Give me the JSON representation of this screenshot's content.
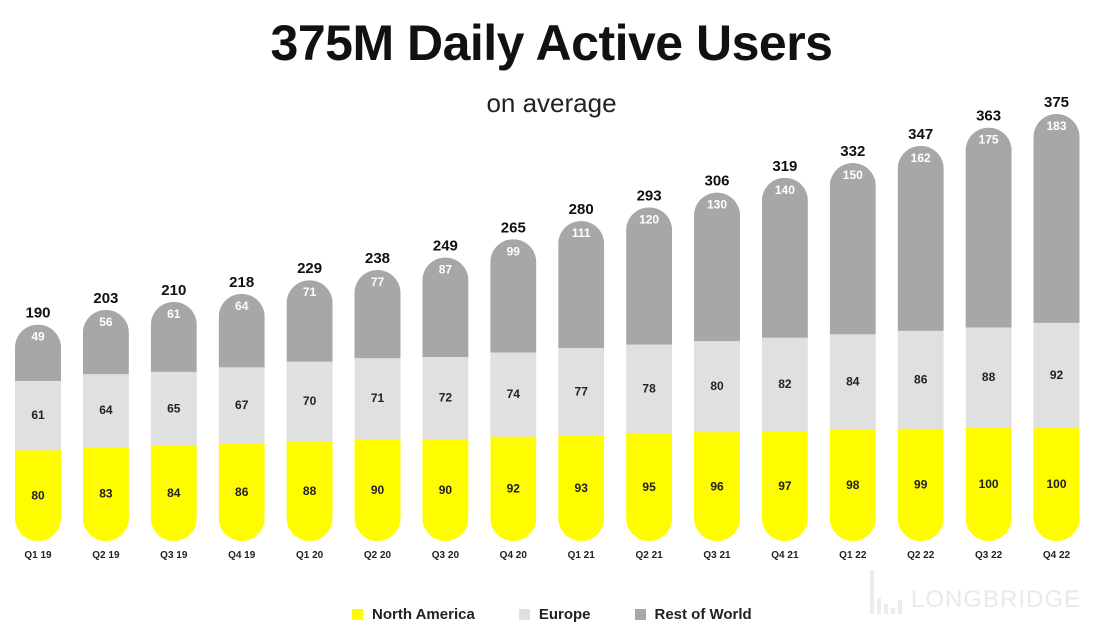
{
  "chart_data": {
    "type": "bar",
    "stacked": true,
    "title": "375M Daily Active Users",
    "subtitle": "on average",
    "categories": [
      "Q1 19",
      "Q2 19",
      "Q3 19",
      "Q4 19",
      "Q1 20",
      "Q2 20",
      "Q3 20",
      "Q4 20",
      "Q1 21",
      "Q2 21",
      "Q3 21",
      "Q4 21",
      "Q1 22",
      "Q2 22",
      "Q3 22",
      "Q4 22"
    ],
    "totals": [
      "190",
      "203",
      "210",
      "218",
      "229",
      "238",
      "249",
      "265",
      "280",
      "293",
      "306",
      "319",
      "332",
      "347",
      "363",
      "375"
    ],
    "series": [
      {
        "name": "North America",
        "color": "#FFFC00",
        "label_color": "#222222",
        "values": [
          80,
          83,
          84,
          86,
          88,
          90,
          90,
          92,
          93,
          95,
          96,
          97,
          98,
          99,
          100,
          100
        ]
      },
      {
        "name": "Europe",
        "color": "#E0E0E1",
        "label_color": "#222222",
        "values": [
          61,
          64,
          65,
          67,
          70,
          71,
          72,
          74,
          77,
          78,
          80,
          82,
          84,
          86,
          88,
          92
        ]
      },
      {
        "name": "Rest of World",
        "color": "#A7A7A7",
        "label_color": "#FFFFFF",
        "values": [
          49,
          56,
          61,
          64,
          71,
          77,
          87,
          99,
          111,
          120,
          130,
          140,
          150,
          162,
          175,
          183
        ]
      }
    ],
    "xlabel": "",
    "ylabel": "",
    "ylim": [
      0,
      375
    ],
    "grid": false,
    "legend": "bottom-center"
  },
  "watermark": "LONGBRIDGE"
}
